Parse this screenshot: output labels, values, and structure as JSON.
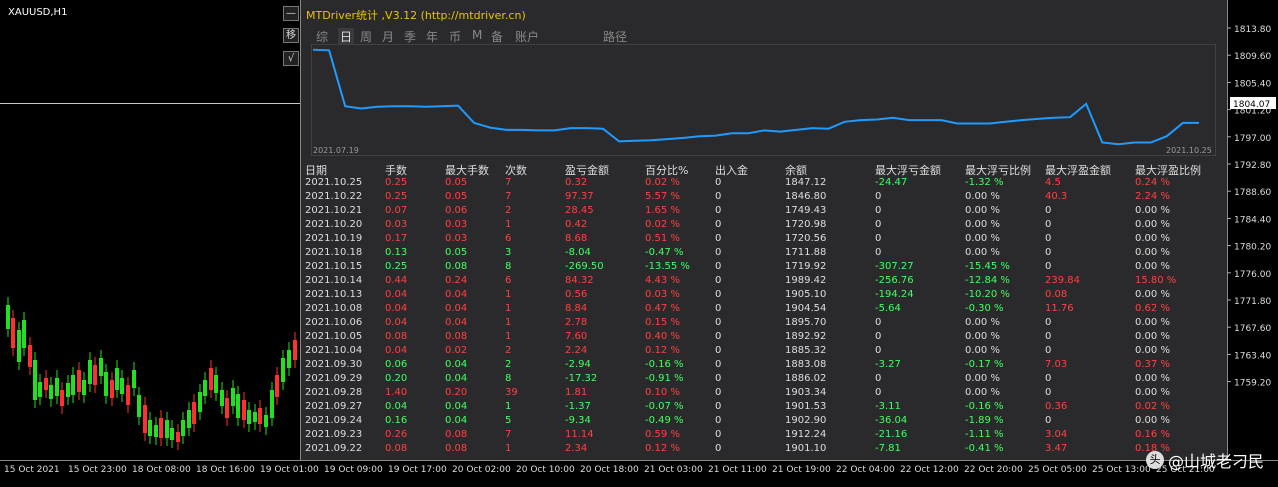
{
  "symbol": "XAUUSD,H1",
  "side_buttons": [
    "—",
    "移",
    "√"
  ],
  "panel_title": "MTDriver统计 ,V3.12 (http://mtdriver.cn)",
  "tabs": [
    "综",
    "日",
    "周",
    "月",
    "季",
    "年",
    "币",
    "M",
    "备",
    "账户",
    "路径"
  ],
  "active_tab": "日",
  "equity_dates": {
    "start": "2021.07.19",
    "end": "2021.10.25"
  },
  "chart_data": {
    "type": "line",
    "series": [
      {
        "values": [
          1847,
          1846,
          1749,
          1745,
          1748,
          1749,
          1749,
          1748,
          1749,
          1750,
          1720,
          1712,
          1708,
          1708,
          1707,
          1707,
          1711,
          1711,
          1710,
          1688,
          1689,
          1690,
          1692,
          1694,
          1697,
          1698,
          1702,
          1702,
          1707,
          1705,
          1708,
          1711,
          1710,
          1722,
          1725,
          1726,
          1729,
          1725,
          1725,
          1725,
          1719,
          1719,
          1719,
          1722,
          1725,
          1727,
          1729,
          1730,
          1753,
          1686,
          1683,
          1686,
          1686,
          1697,
          1720,
          1720
        ]
      }
    ]
  },
  "price_axis": [
    "1813.80",
    "1809.60",
    "1805.40",
    "1801.20",
    "1797.00",
    "1792.80",
    "1788.60",
    "1784.40",
    "1780.20",
    "1776.00",
    "1771.80",
    "1767.60",
    "1763.40",
    "1759.20"
  ],
  "current_price": "1804.07",
  "time_axis": [
    "15 Oct 2021",
    "15 Oct 23:00",
    "18 Oct 08:00",
    "18 Oct 16:00",
    "19 Oct 01:00",
    "19 Oct 09:00",
    "19 Oct 17:00",
    "20 Oct 02:00",
    "20 Oct 10:00",
    "20 Oct 18:00",
    "21 Oct 03:00",
    "21 Oct 11:00",
    "21 Oct 19:00",
    "22 Oct 04:00",
    "22 Oct 12:00",
    "22 Oct 20:00",
    "25 Oct 05:00",
    "25 Oct 13:00",
    "25 Oct 21:00"
  ],
  "table": {
    "headers": [
      "日期",
      "手数",
      "最大手数",
      "次数",
      "盈亏金额",
      "百分比%",
      "出入金",
      "余额",
      "最大浮亏金额",
      "最大浮亏比例",
      "最大浮盈金额",
      "最大浮盈比例"
    ],
    "rows": [
      [
        "2021.10.25",
        "0.25",
        "0.05",
        "7",
        "0.32",
        "0.02 %",
        "0",
        "1847.12",
        "-24.47",
        "-1.32 %",
        "4.5",
        "0.24 %"
      ],
      [
        "2021.10.22",
        "0.25",
        "0.05",
        "7",
        "97.37",
        "5.57 %",
        "0",
        "1846.80",
        "0",
        "0.00 %",
        "40.3",
        "2.24 %"
      ],
      [
        "2021.10.21",
        "0.07",
        "0.06",
        "2",
        "28.45",
        "1.65 %",
        "0",
        "1749.43",
        "0",
        "0.00 %",
        "0",
        "0.00 %"
      ],
      [
        "2021.10.20",
        "0.03",
        "0.03",
        "1",
        "0.42",
        "0.02 %",
        "0",
        "1720.98",
        "0",
        "0.00 %",
        "0",
        "0.00 %"
      ],
      [
        "2021.10.19",
        "0.17",
        "0.03",
        "6",
        "8.68",
        "0.51 %",
        "0",
        "1720.56",
        "0",
        "0.00 %",
        "0",
        "0.00 %"
      ],
      [
        "2021.10.18",
        "0.13",
        "0.05",
        "3",
        "-8.04",
        "-0.47 %",
        "0",
        "1711.88",
        "0",
        "0.00 %",
        "0",
        "0.00 %"
      ],
      [
        "2021.10.15",
        "0.25",
        "0.08",
        "8",
        "-269.50",
        "-13.55 %",
        "0",
        "1719.92",
        "-307.27",
        "-15.45 %",
        "0",
        "0.00 %"
      ],
      [
        "2021.10.14",
        "0.44",
        "0.24",
        "6",
        "84.32",
        "4.43 %",
        "0",
        "1989.42",
        "-256.76",
        "-12.84 %",
        "239.84",
        "15.80 %"
      ],
      [
        "2021.10.13",
        "0.04",
        "0.04",
        "1",
        "0.56",
        "0.03 %",
        "0",
        "1905.10",
        "-194.24",
        "-10.20 %",
        "0.08",
        "0.00 %"
      ],
      [
        "2021.10.08",
        "0.04",
        "0.04",
        "1",
        "8.84",
        "0.47 %",
        "0",
        "1904.54",
        "-5.64",
        "-0.30 %",
        "11.76",
        "0.62 %"
      ],
      [
        "2021.10.06",
        "0.04",
        "0.04",
        "1",
        "2.78",
        "0.15 %",
        "0",
        "1895.70",
        "0",
        "0.00 %",
        "0",
        "0.00 %"
      ],
      [
        "2021.10.05",
        "0.08",
        "0.08",
        "1",
        "7.60",
        "0.40 %",
        "0",
        "1892.92",
        "0",
        "0.00 %",
        "0",
        "0.00 %"
      ],
      [
        "2021.10.04",
        "0.04",
        "0.02",
        "2",
        "2.24",
        "0.12 %",
        "0",
        "1885.32",
        "0",
        "0.00 %",
        "0",
        "0.00 %"
      ],
      [
        "2021.09.30",
        "0.06",
        "0.04",
        "2",
        "-2.94",
        "-0.16 %",
        "0",
        "1883.08",
        "-3.27",
        "-0.17 %",
        "7.03",
        "0.37 %"
      ],
      [
        "2021.09.29",
        "0.20",
        "0.04",
        "8",
        "-17.32",
        "-0.91 %",
        "0",
        "1886.02",
        "0",
        "0.00 %",
        "0",
        "0.00 %"
      ],
      [
        "2021.09.28",
        "1.40",
        "0.20",
        "39",
        "1.81",
        "0.10 %",
        "0",
        "1903.34",
        "0",
        "0.00 %",
        "0",
        "0.00 %"
      ],
      [
        "2021.09.27",
        "0.04",
        "0.04",
        "1",
        "-1.37",
        "-0.07 %",
        "0",
        "1901.53",
        "-3.11",
        "-0.16 %",
        "0.36",
        "0.02 %"
      ],
      [
        "2021.09.24",
        "0.16",
        "0.04",
        "5",
        "-9.34",
        "-0.49 %",
        "0",
        "1902.90",
        "-36.04",
        "-1.89 %",
        "0",
        "0.00 %"
      ],
      [
        "2021.09.23",
        "0.26",
        "0.08",
        "7",
        "11.14",
        "0.59 %",
        "0",
        "1912.24",
        "-21.16",
        "-1.11 %",
        "3.04",
        "0.16 %"
      ],
      [
        "2021.09.22",
        "0.08",
        "0.08",
        "1",
        "2.34",
        "0.12 %",
        "0",
        "1901.10",
        "-7.81",
        "-0.41 %",
        "3.47",
        "0.18 %"
      ]
    ]
  },
  "watermark": "@山城老刁民",
  "watermark_logo": "头条",
  "colors": {
    "profit": "#ff4040",
    "loss": "#40ff60",
    "equity_line": "#1e9bff",
    "title": "#e8c400"
  }
}
